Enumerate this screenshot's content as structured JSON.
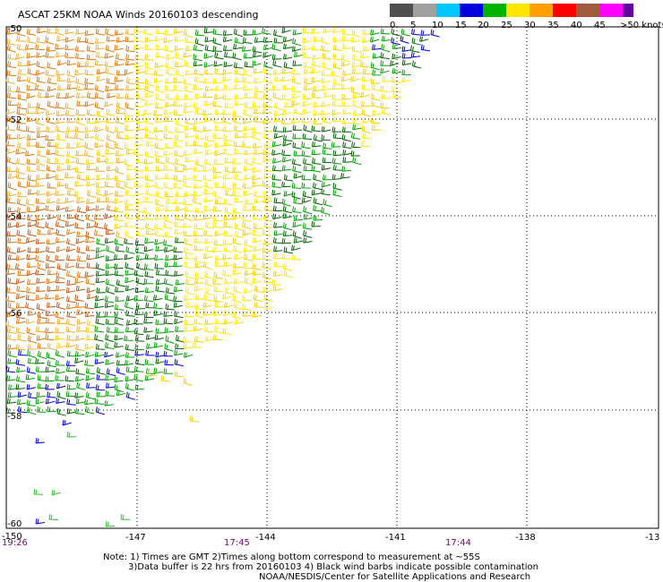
{
  "title": "ASCAT 25KM NOAA Winds 20160103 descending",
  "legend": {
    "bins": [
      {
        "label": "0",
        "color": "#505050"
      },
      {
        "label": "5",
        "color": "#a0a0a0"
      },
      {
        "label": "10",
        "color": "#00c8ff"
      },
      {
        "label": "15",
        "color": "#0000dc"
      },
      {
        "label": "20",
        "color": "#00b400"
      },
      {
        "label": "25",
        "color": "#ffe600"
      },
      {
        "label": "30",
        "color": "#ffa000"
      },
      {
        "label": "35",
        "color": "#ff0000"
      },
      {
        "label": "40",
        "color": "#a05a3c"
      },
      {
        "label": "45",
        "color": "#ff00ff"
      },
      {
        "label": "",
        "color": "#6400a0"
      }
    ],
    "max_label": ">50 knots"
  },
  "axes": {
    "lat_labels": [
      "-50",
      "-52",
      "-54",
      "-56",
      "-58",
      "-60"
    ],
    "lon_labels": [
      "-150",
      "-147",
      "-144",
      "-141",
      "-138",
      "-13"
    ]
  },
  "times": [
    "19:26",
    "17:45",
    "17:44"
  ],
  "notes": [
    "Note: 1) Times are GMT 2)Times along bottom correspond to measurement at ~55S",
    "3)Data buffer is 22 hrs from 20160103 4) Black wind barbs indicate possible contamination",
    "NOAA/NESDIS/Center for Satellite Applications and Research"
  ]
}
